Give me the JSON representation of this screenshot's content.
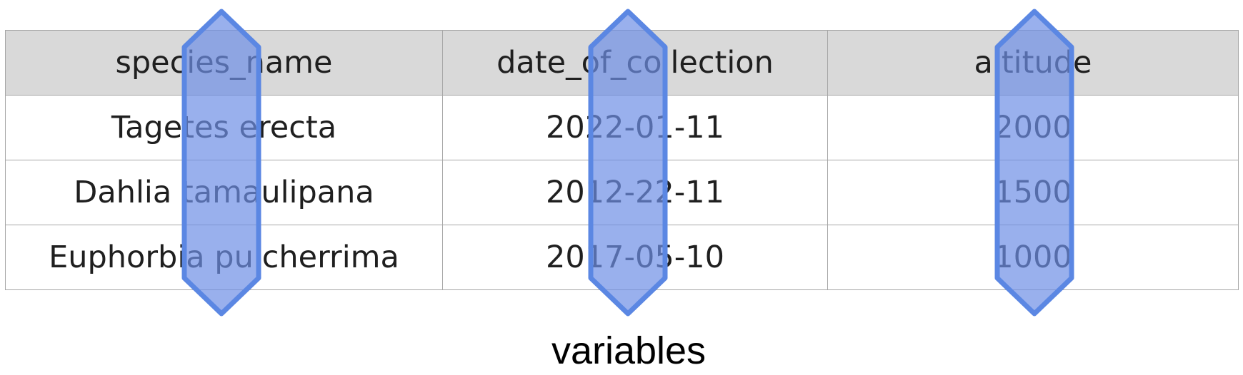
{
  "table": {
    "headers": [
      "species_name",
      "date_of_collection",
      "altitude"
    ],
    "rows": [
      [
        "Tagetes erecta",
        "2022-01-11",
        "2000"
      ],
      [
        "Dahlia tamaulipana",
        "2012-22-11",
        "1500"
      ],
      [
        "Euphorbia pulcherrima",
        "2017-05-10",
        "1000"
      ]
    ]
  },
  "caption": "variables",
  "colors": {
    "header_background": "#d9d9d9",
    "grid_lines": "#a6a6a6",
    "arrow_fill": "#6d8fe6",
    "arrow_stroke": "#5b87e3"
  }
}
